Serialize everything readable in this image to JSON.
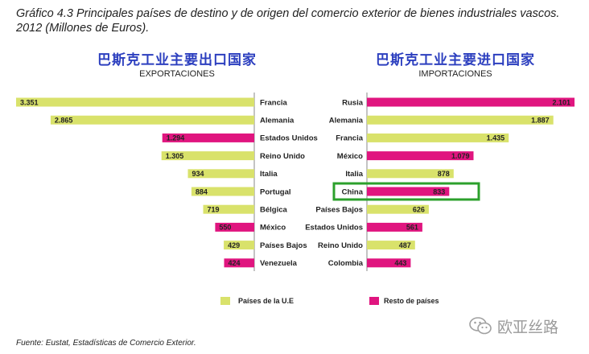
{
  "title": "Gráfico 4.3 Principales países de destino y de origen del comercio exterior de bienes industriales vascos. 2012 (Millones de Euros).",
  "source": "Fuente: Eustat, Estadísticas de Comercio Exterior.",
  "watermark": "欧亚丝路",
  "colors": {
    "ue": "#d9e26b",
    "resto": "#e0157f",
    "highlight": "#2ca02c"
  },
  "chart_data": [
    {
      "type": "bar",
      "orientation": "horizontal",
      "direction": "right-to-left",
      "title_cn": "巴斯克工业主要出口国家",
      "subtitle": "EXPORTACIONES",
      "categories": [
        "Francia",
        "Alemania",
        "Estados Unidos",
        "Reino Unido",
        "Italia",
        "Portugal",
        "Bélgica",
        "México",
        "Países Bajos",
        "Venezuela"
      ],
      "values": [
        3351,
        2865,
        1294,
        1305,
        934,
        884,
        719,
        550,
        429,
        424
      ],
      "value_labels": [
        "3.351",
        "2.865",
        "1.294",
        "1.305",
        "934",
        "884",
        "719",
        "550",
        "429",
        "424"
      ],
      "group": [
        "ue",
        "ue",
        "resto",
        "ue",
        "ue",
        "ue",
        "ue",
        "resto",
        "ue",
        "resto"
      ],
      "xlim": [
        0,
        3351
      ]
    },
    {
      "type": "bar",
      "orientation": "horizontal",
      "direction": "left-to-right",
      "title_cn": "巴斯克工业主要进口国家",
      "subtitle": "IMPORTACIONES",
      "categories": [
        "Rusia",
        "Alemania",
        "Francia",
        "México",
        "Italia",
        "China",
        "Países Bajos",
        "Estados Unidos",
        "Reino Unido",
        "Colombia"
      ],
      "values": [
        2101,
        1887,
        1435,
        1079,
        878,
        833,
        626,
        561,
        487,
        443
      ],
      "value_labels": [
        "2.101",
        "1.887",
        "1.435",
        "1.079",
        "878",
        "833",
        "626",
        "561",
        "487",
        "443"
      ],
      "group": [
        "resto",
        "ue",
        "ue",
        "resto",
        "ue",
        "resto",
        "ue",
        "resto",
        "ue",
        "resto"
      ],
      "highlight": "China",
      "xlim": [
        0,
        2101
      ]
    }
  ],
  "legend": [
    {
      "key": "ue",
      "label": "Países de la U.E"
    },
    {
      "key": "resto",
      "label": "Resto de países"
    }
  ]
}
